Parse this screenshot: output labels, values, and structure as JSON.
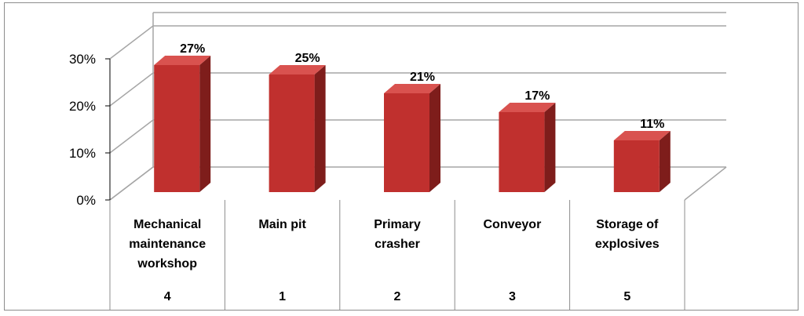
{
  "chart_data": {
    "type": "bar",
    "categories": [
      [
        "Mechanical",
        "maintenance",
        "workshop"
      ],
      [
        "Main pit"
      ],
      [
        "Primary",
        "crasher"
      ],
      [
        "Conveyor"
      ],
      [
        "Storage of",
        "explosives"
      ]
    ],
    "category_codes": [
      "4",
      "1",
      "2",
      "3",
      "5"
    ],
    "values": [
      27,
      25,
      21,
      17,
      11
    ],
    "data_labels": [
      "27%",
      "25%",
      "21%",
      "17%",
      "11%"
    ],
    "yticks": [
      "0%",
      "10%",
      "20%",
      "30%"
    ],
    "ylim": [
      0,
      30
    ],
    "grid": true,
    "title": "",
    "xlabel": "",
    "ylabel": "",
    "colors": {
      "bar_front": "#c0302e",
      "bar_side": "#7e1d1b",
      "bar_top": "#d9524f",
      "grid": "#a6a6a6"
    }
  }
}
